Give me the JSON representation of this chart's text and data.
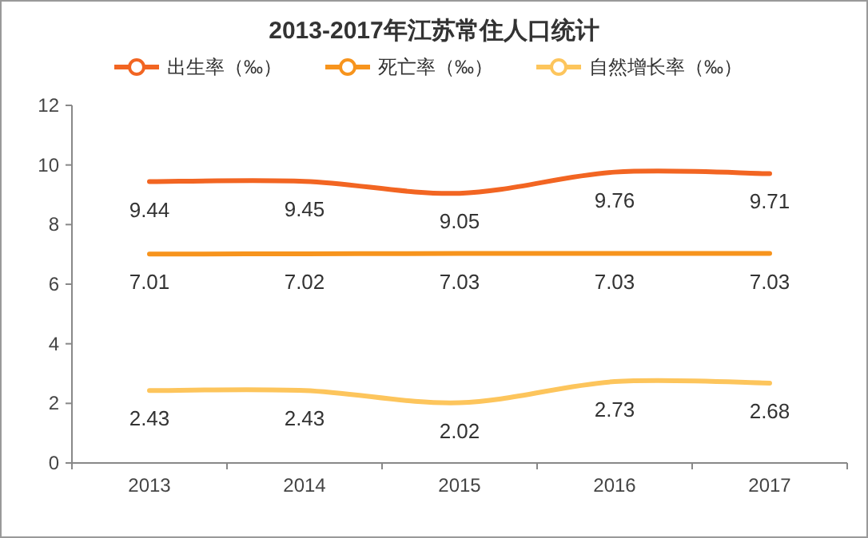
{
  "chart_data": {
    "type": "line",
    "title": "2013-2017年江苏常住人口统计",
    "categories": [
      "2013",
      "2014",
      "2015",
      "2016",
      "2017"
    ],
    "series": [
      {
        "name": "出生率（‰）",
        "color": "#f26522",
        "values": [
          9.44,
          9.45,
          9.05,
          9.76,
          9.71
        ]
      },
      {
        "name": "死亡率（‰）",
        "color": "#f7941d",
        "values": [
          7.01,
          7.02,
          7.03,
          7.03,
          7.03
        ]
      },
      {
        "name": "自然增长率（‰）",
        "color": "#fdc55c",
        "values": [
          2.43,
          2.43,
          2.02,
          2.73,
          2.68
        ]
      }
    ],
    "ylim": [
      0,
      12
    ],
    "yticks": [
      0,
      2,
      4,
      6,
      8,
      10,
      12
    ],
    "grid": false,
    "legend": "top",
    "data_labels": true,
    "marker": "none",
    "line_style": "solid"
  }
}
